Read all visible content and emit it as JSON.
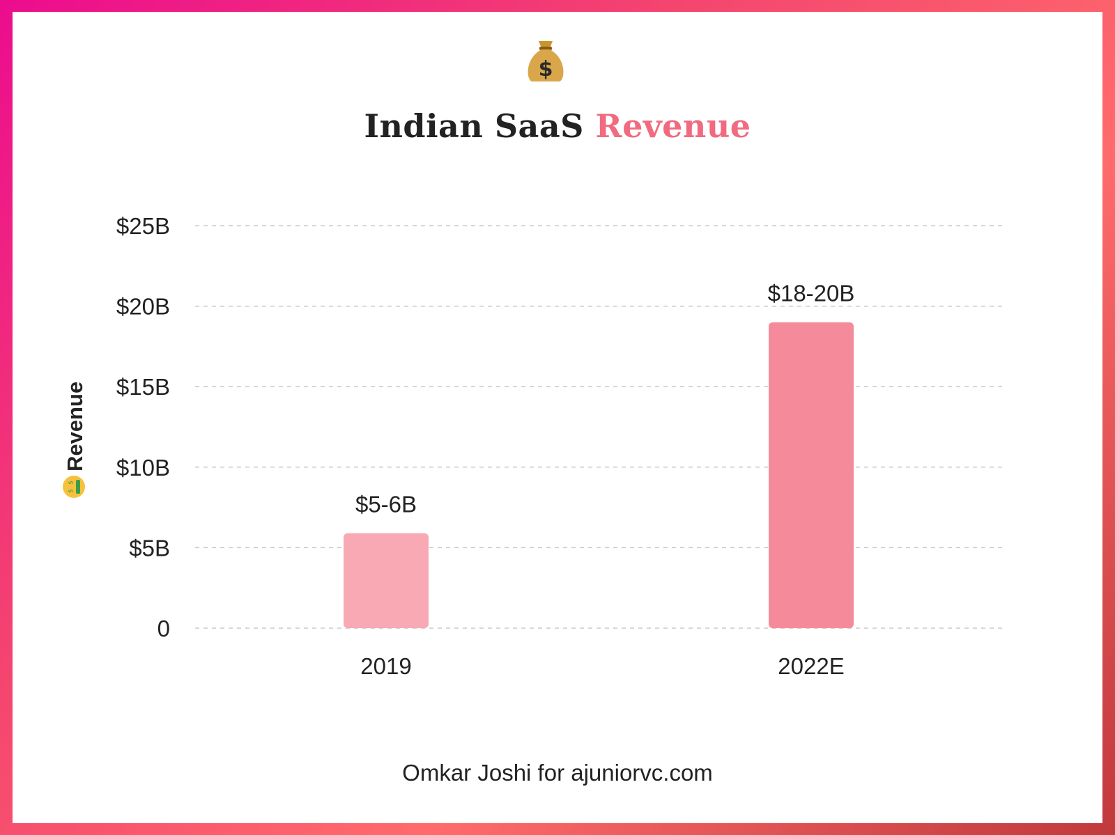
{
  "header": {
    "title_main": "Indian SaaS",
    "title_accent": "Revenue"
  },
  "footer": {
    "credit": "Omkar Joshi for ajuniorvc.com"
  },
  "colors": {
    "accent": "#f06b80",
    "bar_2019": "#f8a9b4",
    "bar_2022": "#f58b9a",
    "grid": "#c8c8c8"
  },
  "icons": {
    "title_icon": "money-bag-icon",
    "ylabel_icon": "money-mouth-face-icon"
  },
  "chart_data": {
    "type": "bar",
    "title": "Indian SaaS Revenue",
    "xlabel": "",
    "ylabel": "Revenue",
    "categories": [
      "2019",
      "2022E"
    ],
    "values": [
      5.9,
      19
    ],
    "data_labels": [
      "$5-6B",
      "$18-20B"
    ],
    "ylim": [
      0,
      25
    ],
    "yticks": [
      {
        "value": 0,
        "label": "0"
      },
      {
        "value": 5,
        "label": "$5B"
      },
      {
        "value": 10,
        "label": "$10B"
      },
      {
        "value": 15,
        "label": "$15B"
      },
      {
        "value": 20,
        "label": "$20B"
      },
      {
        "value": 25,
        "label": "$25B"
      }
    ],
    "grid": true,
    "legend": "none"
  }
}
